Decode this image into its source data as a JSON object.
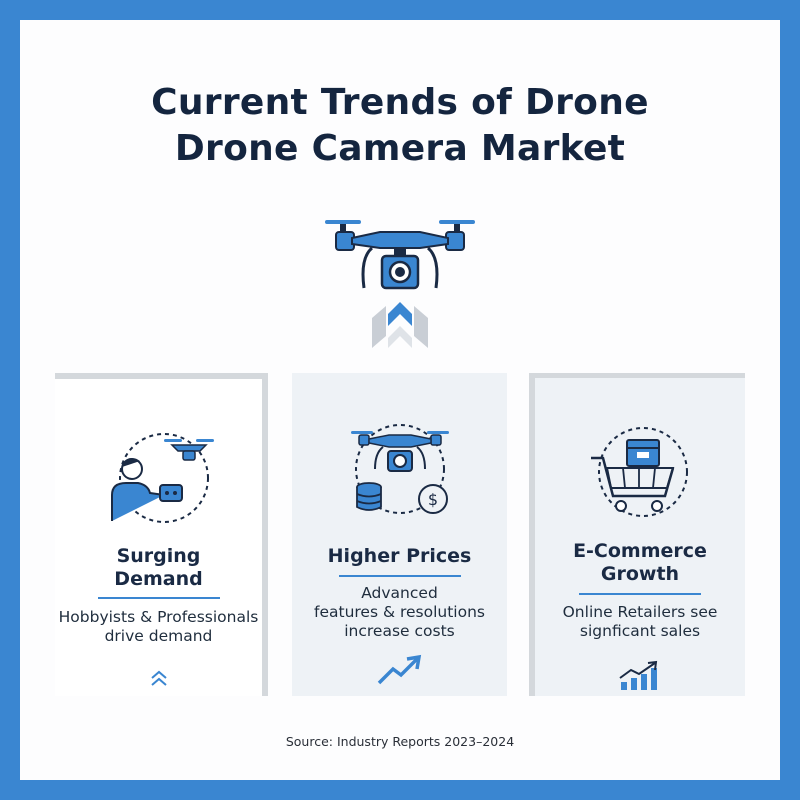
{
  "title_line1": "Current Trends of Drone",
  "title_line2": "Drone Camera Market",
  "colors": {
    "frame": "#3a86d1",
    "accent": "#3a86d1",
    "dark": "#14253f"
  },
  "cards": [
    {
      "title_line1": "Surging",
      "title_line2": "Demand",
      "text_line1": "Hobbyists & Professionals",
      "text_line2": "drive demand",
      "icon": "person-with-drone-remote-icon",
      "foot_icon": "double-chevron-up-icon"
    },
    {
      "title_line1": "Higher Prices",
      "text_line1": "Advanced",
      "text_line2": "features & resolutions",
      "text_line3": "increase costs",
      "icon": "drone-with-coins-icon",
      "foot_icon": "trend-up-arrow-icon"
    },
    {
      "title_line1": "E-Commerce",
      "title_line2": "Growth",
      "text_line1": "Online Retailers see",
      "text_line2": "signficant sales",
      "icon": "shopping-cart-icon",
      "foot_icon": "bar-growth-icon"
    }
  ],
  "source": "Source: Industry Reports 2023–2024"
}
